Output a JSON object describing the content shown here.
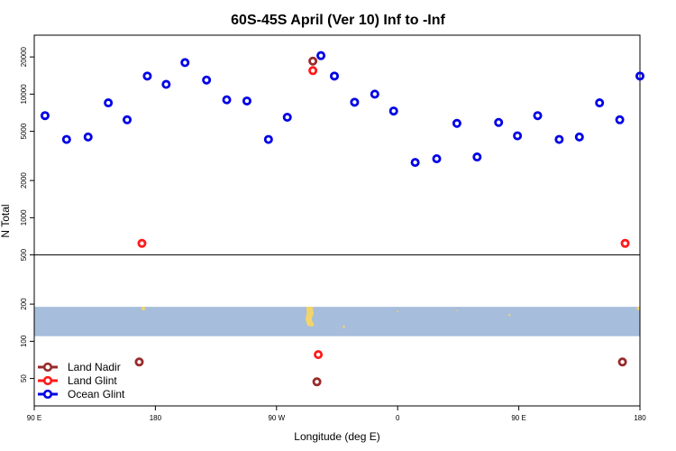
{
  "chart_data": {
    "type": "scatter",
    "title": "60S-45S April (Ver 10)   Inf to -Inf",
    "xlabel": "Longitude (deg E)",
    "ylabel": "N Total",
    "x_tick_labels": [
      "90 E",
      "180",
      "90 W",
      "0",
      "90 E",
      "180"
    ],
    "x_tick_values": [
      90,
      180,
      270,
      360,
      450,
      540
    ],
    "xlim": [
      90,
      540
    ],
    "y_scale": "log",
    "ylim": [
      30,
      30000
    ],
    "y_tick_labels": [
      "50",
      "100",
      "200",
      "500",
      "1000",
      "2000",
      "5000",
      "10000",
      "20000"
    ],
    "y_tick_values": [
      50,
      100,
      200,
      500,
      1000,
      2000,
      5000,
      10000,
      20000
    ],
    "divider_value": 500,
    "map_strip": {
      "ymin": 110,
      "ymax": 190,
      "ocean_color": "#a6bddb",
      "land_color": "#f3d46a"
    },
    "legend": {
      "placement": "bottom-left",
      "entries": [
        {
          "label": "Land Nadir",
          "color": "#982a2a"
        },
        {
          "label": "Land Glint",
          "color": "#ff1a1a"
        },
        {
          "label": "Ocean Glint",
          "color": "#0000e6"
        }
      ]
    },
    "series": [
      {
        "name": "Land Nadir",
        "color": "#982a2a",
        "points": [
          [
            168,
            68
          ],
          [
            300,
            47
          ],
          [
            297,
            18500
          ],
          [
            527,
            68
          ]
        ]
      },
      {
        "name": "Land Glint",
        "color": "#ff1a1a",
        "points": [
          [
            170,
            620
          ],
          [
            301,
            78
          ],
          [
            297,
            15500
          ],
          [
            529,
            620
          ]
        ]
      },
      {
        "name": "Ocean Glint",
        "color": "#0000e6",
        "points": [
          [
            98,
            6700
          ],
          [
            114,
            4300
          ],
          [
            130,
            4500
          ],
          [
            145,
            8500
          ],
          [
            159,
            6200
          ],
          [
            174,
            14000
          ],
          [
            188,
            12000
          ],
          [
            202,
            18000
          ],
          [
            218,
            13000
          ],
          [
            233,
            9000
          ],
          [
            248,
            8800
          ],
          [
            264,
            4300
          ],
          [
            278,
            6500
          ],
          [
            303,
            20500
          ],
          [
            313,
            14000
          ],
          [
            328,
            8600
          ],
          [
            343,
            10000
          ],
          [
            357,
            7300
          ],
          [
            373,
            2800
          ],
          [
            389,
            3000
          ],
          [
            404,
            5800
          ],
          [
            419,
            3100
          ],
          [
            435,
            5900
          ],
          [
            449,
            4600
          ],
          [
            464,
            6700
          ],
          [
            480,
            4300
          ],
          [
            495,
            4500
          ],
          [
            510,
            8500
          ],
          [
            525,
            6200
          ],
          [
            540,
            14000
          ]
        ]
      }
    ]
  }
}
